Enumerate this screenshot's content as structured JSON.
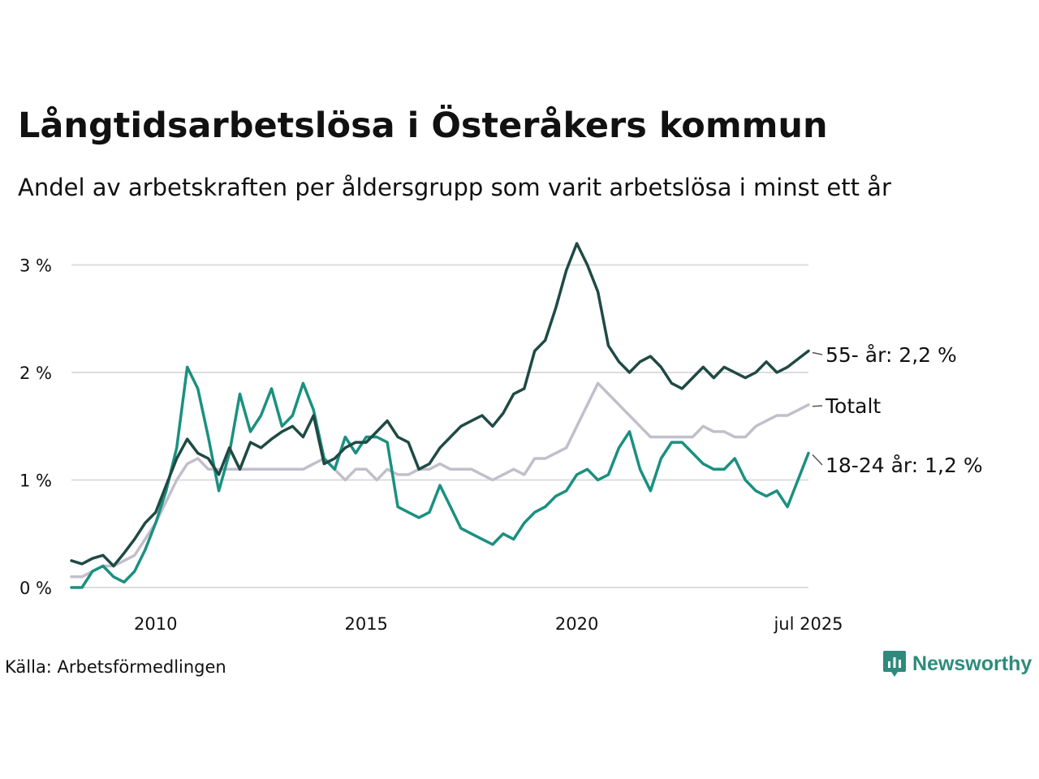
{
  "title": "Långtidsarbetslösa i Österåkers kommun",
  "subtitle": "Andel av arbetskraften per åldersgrupp som varit arbetslösa i minst ett år",
  "source": "Källa: Arbetsförmedlingen",
  "brand": "Newsworthy",
  "colors": {
    "series_55": "#1f4a44",
    "series_total": "#c2bfcc",
    "series_18_24": "#1a9080",
    "grid": "#dcdce0",
    "brand": "#2e8b7c"
  },
  "chart_data": {
    "type": "line",
    "ylim": [
      0,
      3.3
    ],
    "yticks": [
      0,
      1,
      2,
      3
    ],
    "ytick_labels": [
      "0 %",
      "1 %",
      "2 %",
      "3 %"
    ],
    "xticks": [
      2010,
      2015,
      2020,
      2025.5
    ],
    "xtick_labels": [
      "2010",
      "2015",
      "2020",
      "jul 2025"
    ],
    "grid": true,
    "x_unit": "year",
    "series": [
      {
        "name": "55- år",
        "end_label": "55- år: 2,2 %",
        "color": "#1f4a44",
        "x": [
          2008.0,
          2008.25,
          2008.5,
          2008.75,
          2009.0,
          2009.25,
          2009.5,
          2009.75,
          2010.0,
          2010.25,
          2010.5,
          2010.75,
          2011.0,
          2011.25,
          2011.5,
          2011.75,
          2012.0,
          2012.25,
          2012.5,
          2012.75,
          2013.0,
          2013.25,
          2013.5,
          2013.75,
          2014.0,
          2014.25,
          2014.5,
          2014.75,
          2015.0,
          2015.25,
          2015.5,
          2015.75,
          2016.0,
          2016.25,
          2016.5,
          2016.75,
          2017.0,
          2017.25,
          2017.5,
          2017.75,
          2018.0,
          2018.25,
          2018.5,
          2018.75,
          2019.0,
          2019.25,
          2019.5,
          2019.75,
          2020.0,
          2020.25,
          2020.5,
          2020.75,
          2021.0,
          2021.25,
          2021.5,
          2021.75,
          2022.0,
          2022.25,
          2022.5,
          2022.75,
          2023.0,
          2023.25,
          2023.5,
          2023.75,
          2024.0,
          2024.25,
          2024.5,
          2024.75,
          2025.0,
          2025.5
        ],
        "values": [
          0.25,
          0.22,
          0.27,
          0.3,
          0.2,
          0.32,
          0.45,
          0.6,
          0.7,
          0.95,
          1.2,
          1.38,
          1.25,
          1.2,
          1.05,
          1.3,
          1.1,
          1.35,
          1.3,
          1.38,
          1.45,
          1.5,
          1.4,
          1.6,
          1.15,
          1.2,
          1.3,
          1.35,
          1.35,
          1.45,
          1.55,
          1.4,
          1.35,
          1.1,
          1.15,
          1.3,
          1.4,
          1.5,
          1.55,
          1.6,
          1.5,
          1.62,
          1.8,
          1.85,
          2.2,
          2.3,
          2.6,
          2.95,
          3.2,
          3.0,
          2.75,
          2.25,
          2.1,
          2.0,
          2.1,
          2.15,
          2.05,
          1.9,
          1.85,
          1.95,
          2.05,
          1.95,
          2.05,
          2.0,
          1.95,
          2.0,
          2.1,
          2.0,
          2.05,
          2.2
        ]
      },
      {
        "name": "Totalt",
        "end_label": "Totalt",
        "color": "#c2bfcc",
        "x": [
          2008.0,
          2008.25,
          2008.5,
          2008.75,
          2009.0,
          2009.25,
          2009.5,
          2009.75,
          2010.0,
          2010.25,
          2010.5,
          2010.75,
          2011.0,
          2011.25,
          2011.5,
          2011.75,
          2012.0,
          2012.25,
          2012.5,
          2012.75,
          2013.0,
          2013.25,
          2013.5,
          2013.75,
          2014.0,
          2014.25,
          2014.5,
          2014.75,
          2015.0,
          2015.25,
          2015.5,
          2015.75,
          2016.0,
          2016.25,
          2016.5,
          2016.75,
          2017.0,
          2017.25,
          2017.5,
          2017.75,
          2018.0,
          2018.25,
          2018.5,
          2018.75,
          2019.0,
          2019.25,
          2019.5,
          2019.75,
          2020.0,
          2020.25,
          2020.5,
          2020.75,
          2021.0,
          2021.25,
          2021.5,
          2021.75,
          2022.0,
          2022.25,
          2022.5,
          2022.75,
          2023.0,
          2023.25,
          2023.5,
          2023.75,
          2024.0,
          2024.25,
          2024.5,
          2024.75,
          2025.0,
          2025.5
        ],
        "values": [
          0.1,
          0.1,
          0.15,
          0.2,
          0.2,
          0.25,
          0.3,
          0.45,
          0.6,
          0.8,
          1.0,
          1.15,
          1.2,
          1.1,
          1.1,
          1.1,
          1.1,
          1.1,
          1.1,
          1.1,
          1.1,
          1.1,
          1.1,
          1.15,
          1.2,
          1.1,
          1.0,
          1.1,
          1.1,
          1.0,
          1.1,
          1.05,
          1.05,
          1.1,
          1.1,
          1.15,
          1.1,
          1.1,
          1.1,
          1.05,
          1.0,
          1.05,
          1.1,
          1.05,
          1.2,
          1.2,
          1.25,
          1.3,
          1.5,
          1.7,
          1.9,
          1.8,
          1.7,
          1.6,
          1.5,
          1.4,
          1.4,
          1.4,
          1.4,
          1.4,
          1.5,
          1.45,
          1.45,
          1.4,
          1.4,
          1.5,
          1.55,
          1.6,
          1.6,
          1.7
        ]
      },
      {
        "name": "18-24 år",
        "end_label": "18-24 år: 1,2 %",
        "color": "#1a9080",
        "x": [
          2008.0,
          2008.25,
          2008.5,
          2008.75,
          2009.0,
          2009.25,
          2009.5,
          2009.75,
          2010.0,
          2010.25,
          2010.5,
          2010.75,
          2011.0,
          2011.25,
          2011.5,
          2011.75,
          2012.0,
          2012.25,
          2012.5,
          2012.75,
          2013.0,
          2013.25,
          2013.5,
          2013.75,
          2014.0,
          2014.25,
          2014.5,
          2014.75,
          2015.0,
          2015.25,
          2015.5,
          2015.75,
          2016.0,
          2016.25,
          2016.5,
          2016.75,
          2017.0,
          2017.25,
          2017.5,
          2017.75,
          2018.0,
          2018.25,
          2018.5,
          2018.75,
          2019.0,
          2019.25,
          2019.5,
          2019.75,
          2020.0,
          2020.25,
          2020.5,
          2020.75,
          2021.0,
          2021.25,
          2021.5,
          2021.75,
          2022.0,
          2022.25,
          2022.5,
          2022.75,
          2023.0,
          2023.25,
          2023.5,
          2023.75,
          2024.0,
          2024.25,
          2024.5,
          2024.75,
          2025.0,
          2025.5
        ],
        "values": [
          0.0,
          0.0,
          0.15,
          0.2,
          0.1,
          0.05,
          0.15,
          0.35,
          0.6,
          0.9,
          1.3,
          2.05,
          1.85,
          1.4,
          0.9,
          1.25,
          1.8,
          1.45,
          1.6,
          1.85,
          1.5,
          1.6,
          1.9,
          1.65,
          1.2,
          1.1,
          1.4,
          1.25,
          1.4,
          1.4,
          1.35,
          0.75,
          0.7,
          0.65,
          0.7,
          0.95,
          0.75,
          0.55,
          0.5,
          0.45,
          0.4,
          0.5,
          0.45,
          0.6,
          0.7,
          0.75,
          0.85,
          0.9,
          1.05,
          1.1,
          1.0,
          1.05,
          1.3,
          1.45,
          1.1,
          0.9,
          1.2,
          1.35,
          1.35,
          1.25,
          1.15,
          1.1,
          1.1,
          1.2,
          1.0,
          0.9,
          0.85,
          0.9,
          0.75,
          1.25
        ]
      }
    ]
  }
}
